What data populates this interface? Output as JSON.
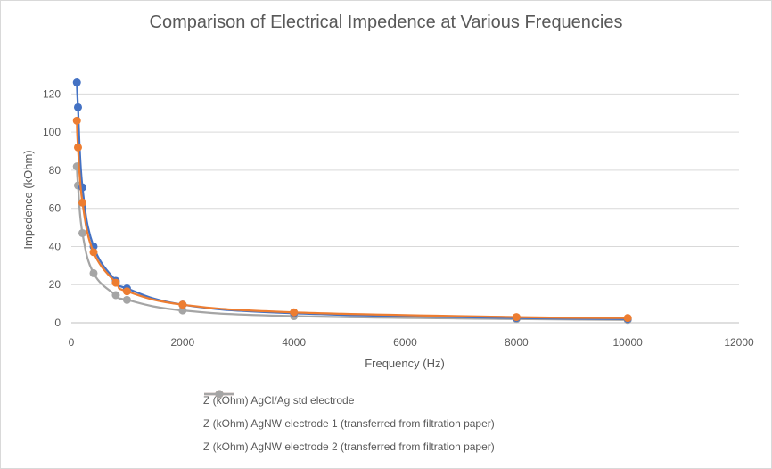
{
  "chart_data": {
    "type": "line",
    "title": "Comparison of Electrical Impedence at Various Frequencies",
    "xlabel": "Frequency (Hz)",
    "ylabel": "Impedence (kOhm)",
    "xlim": [
      0,
      12000
    ],
    "ylim": [
      0,
      130
    ],
    "xticks": [
      0,
      2000,
      4000,
      6000,
      8000,
      10000,
      12000
    ],
    "yticks": [
      0,
      20,
      40,
      60,
      80,
      100,
      120
    ],
    "grid": "horizontal",
    "legend_position": "bottom",
    "series": [
      {
        "name": "Z (kOhm) AgCl/Ag std electrode",
        "color": "#4472C4",
        "x": [
          100,
          120,
          200,
          400,
          800,
          1000,
          2000,
          4000,
          8000,
          10000
        ],
        "y": [
          126,
          113,
          71,
          40,
          22,
          18,
          9.5,
          5,
          2.5,
          2
        ]
      },
      {
        "name": "Z (kOhm) AgNW electrode 1 (transferred from filtration paper)",
        "color": "#ED7D31",
        "x": [
          100,
          120,
          200,
          400,
          800,
          1000,
          2000,
          4000,
          8000,
          10000
        ],
        "y": [
          106,
          92,
          63,
          37,
          21,
          16.5,
          9.5,
          5.5,
          3,
          2.5
        ]
      },
      {
        "name": "Z (kOhm) AgNW electrode 2 (transferred from filtration paper)",
        "color": "#A5A5A5",
        "x": [
          100,
          120,
          200,
          400,
          800,
          1000,
          2000,
          4000,
          8000,
          10000
        ],
        "y": [
          82,
          72,
          47,
          26,
          14.5,
          12,
          6.5,
          3.5,
          2,
          1.5
        ]
      }
    ]
  }
}
